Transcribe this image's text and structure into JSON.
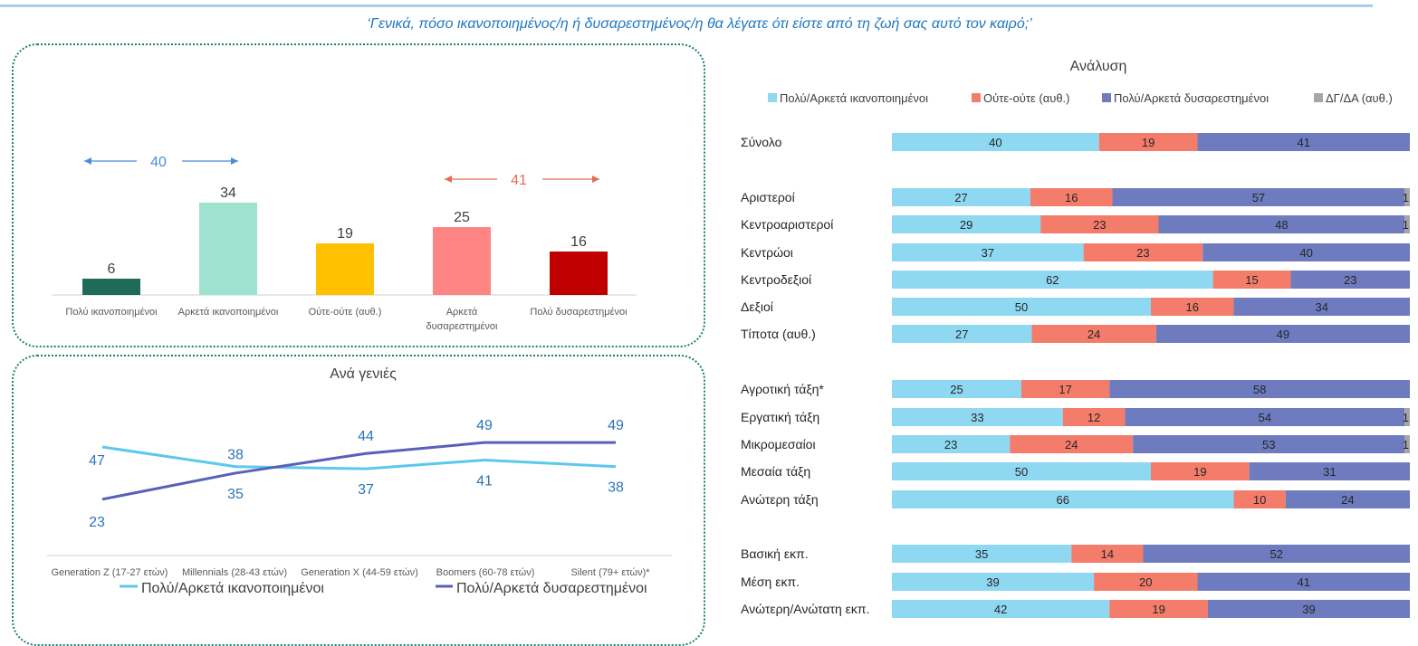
{
  "question": "‘Γενικά, πόσο ικανοποιημένος/η ή δυσαρεστημένος/η θα λέγατε ότι είστε από τη ζωή σας αυτό τον καιρό;’",
  "colors": {
    "satisfied": "#8fd8f2",
    "neutral": "#f47c6a",
    "dissatisfied": "#6e7bbf",
    "dk": "#a6a6a6",
    "line_satisfied": "#5bc8ec",
    "line_dissatisfied": "#5860b8",
    "bracket_blue": "#4a8fd6",
    "bracket_red": "#e86a55"
  },
  "chart_data": [
    {
      "type": "bar",
      "categories": [
        "Πολύ ικανοποιημένοι",
        "Αρκετά ικανοποιημένοι",
        "Ούτε-ούτε (αυθ.)",
        "Αρκετά δυσαρεστημένοι",
        "Πολύ δυσαρεστημένοι"
      ],
      "values": [
        6,
        34,
        19,
        25,
        16
      ],
      "bar_colors": [
        "#1e6b58",
        "#9ee2cf",
        "#ffc000",
        "#ff8585",
        "#c00000"
      ],
      "brackets": [
        {
          "label": "40",
          "color": "#4a8fd6"
        },
        {
          "label": "41",
          "color": "#e86a55"
        }
      ],
      "ylim": [
        0,
        45
      ]
    },
    {
      "type": "line",
      "title": "Ανά γενιές",
      "categories": [
        "Generation Z (17-27 ετών)",
        "Millennials (28-43 ετών)",
        "Generation X (44-59 ετών)",
        "Boomers (60-78 ετών)",
        "Silent (79+ ετών)*"
      ],
      "series": [
        {
          "name": "Πολύ/Αρκετά ικανοποιημένοι",
          "values": [
            47,
            38,
            37,
            41,
            38
          ]
        },
        {
          "name": "Πολύ/Αρκετά δυσαρεστημένοι",
          "values": [
            23,
            35,
            44,
            49,
            49
          ]
        }
      ],
      "ylim": [
        10,
        60
      ]
    },
    {
      "type": "bar",
      "orientation": "horizontal-stacked",
      "title": "Ανάλυση",
      "legend": [
        "Πολύ/Αρκετά ικανοποιημένοι",
        "Ούτε-ούτε (αυθ.)",
        "Πολύ/Αρκετά δυσαρεστημένοι",
        "ΔΓ/ΔΑ (αυθ.)"
      ],
      "legend_position": "top",
      "groups": [
        [
          {
            "label": "Σύνολο",
            "values": [
              40,
              19,
              41,
              0
            ]
          }
        ],
        [
          {
            "label": "Αριστεροί",
            "values": [
              27,
              16,
              57,
              1
            ]
          },
          {
            "label": "Κεντροαριστεροί",
            "values": [
              29,
              23,
              48,
              1
            ]
          },
          {
            "label": "Κεντρώοι",
            "values": [
              37,
              23,
              40,
              0
            ]
          },
          {
            "label": "Κεντροδεξιοί",
            "values": [
              62,
              15,
              23,
              0
            ]
          },
          {
            "label": "Δεξιοί",
            "values": [
              50,
              16,
              34,
              0
            ]
          },
          {
            "label": "Τίποτα (αυθ.)",
            "values": [
              27,
              24,
              49,
              0
            ]
          }
        ],
        [
          {
            "label": "Αγροτική τάξη*",
            "values": [
              25,
              17,
              58,
              0
            ]
          },
          {
            "label": "Εργατική τάξη",
            "values": [
              33,
              12,
              54,
              1
            ]
          },
          {
            "label": "Μικρομεσαίοι",
            "values": [
              23,
              24,
              53,
              1
            ]
          },
          {
            "label": "Μεσαία τάξη",
            "values": [
              50,
              19,
              31,
              0
            ]
          },
          {
            "label": "Ανώτερη τάξη",
            "values": [
              66,
              10,
              24,
              0
            ]
          }
        ],
        [
          {
            "label": "Βασική εκπ.",
            "values": [
              35,
              14,
              52,
              0
            ]
          },
          {
            "label": "Μέση εκπ.",
            "values": [
              39,
              20,
              41,
              0
            ]
          },
          {
            "label": "Ανώτερη/Ανώτατη εκπ.",
            "values": [
              42,
              19,
              39,
              0
            ]
          }
        ]
      ],
      "xlim": [
        0,
        100
      ]
    }
  ]
}
